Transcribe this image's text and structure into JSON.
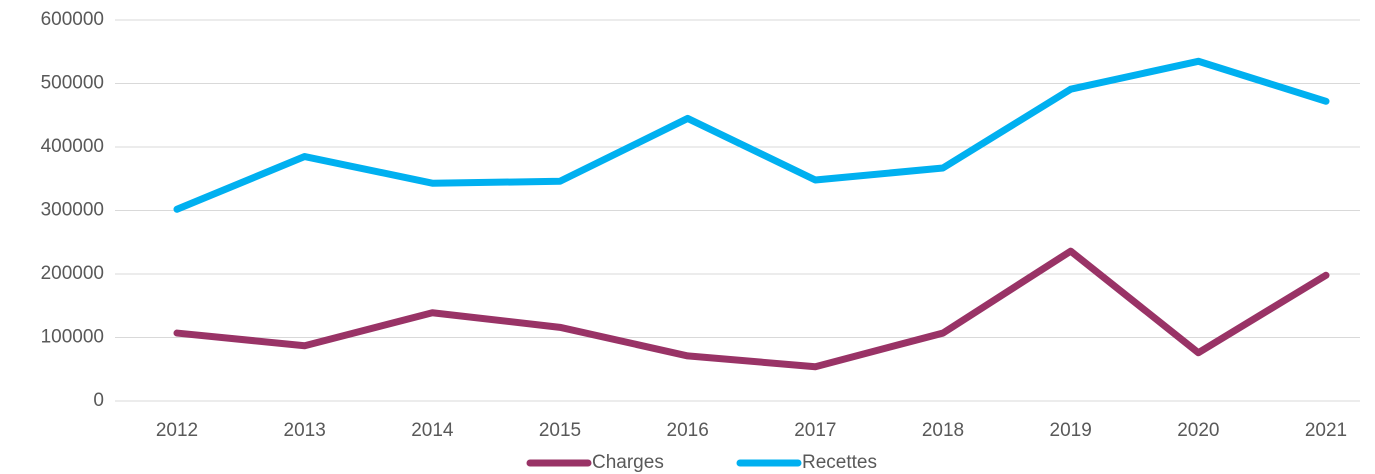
{
  "chart_data": {
    "type": "line",
    "categories": [
      "2012",
      "2013",
      "2014",
      "2015",
      "2016",
      "2017",
      "2018",
      "2019",
      "2020",
      "2021"
    ],
    "series": [
      {
        "name": "Charges",
        "color": "#993366",
        "values": [
          107000,
          87000,
          139000,
          116000,
          71000,
          54000,
          107000,
          236000,
          76000,
          198000
        ]
      },
      {
        "name": "Recettes",
        "color": "#00b0f0",
        "values": [
          302000,
          385000,
          343000,
          346000,
          445000,
          348000,
          367000,
          491000,
          535000,
          472000
        ]
      }
    ],
    "ylim": [
      0,
      600000
    ],
    "yticks": [
      0,
      100000,
      200000,
      300000,
      400000,
      500000,
      600000
    ],
    "grid": true,
    "legend": "bottom"
  }
}
